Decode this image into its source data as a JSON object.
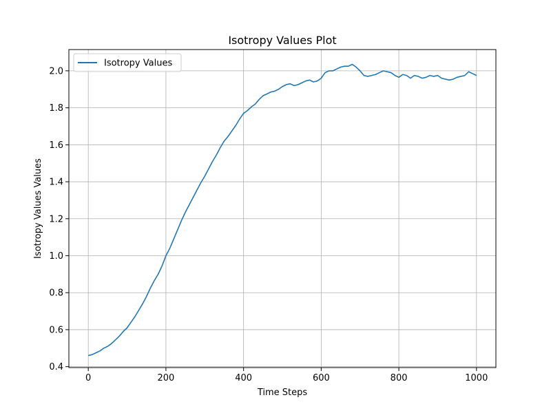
{
  "chart_data": {
    "type": "line",
    "title": "Isotropy Values Plot",
    "xlabel": "Time Steps",
    "ylabel": "Isotropy Values Values",
    "xlim": [
      -50,
      1050
    ],
    "ylim": [
      0.395,
      2.115
    ],
    "xticks": [
      0,
      200,
      400,
      600,
      800,
      1000
    ],
    "yticks": [
      0.4,
      0.6,
      0.8,
      1.0,
      1.2,
      1.4,
      1.6,
      1.8,
      2.0
    ],
    "xtick_labels": [
      "0",
      "200",
      "400",
      "600",
      "800",
      "1000"
    ],
    "ytick_labels": [
      "0.4",
      "0.6",
      "0.8",
      "1.0",
      "1.2",
      "1.4",
      "1.6",
      "1.8",
      "2.0"
    ],
    "grid": true,
    "legend": {
      "placement": "upper-left",
      "entries": [
        "Isotropy Values"
      ]
    },
    "series": [
      {
        "name": "Isotropy Values",
        "color": "#1f77b4",
        "x": [
          0,
          10,
          20,
          30,
          40,
          50,
          60,
          70,
          80,
          90,
          100,
          110,
          120,
          130,
          140,
          150,
          160,
          170,
          180,
          190,
          200,
          210,
          220,
          230,
          240,
          250,
          260,
          270,
          280,
          290,
          300,
          310,
          320,
          330,
          340,
          350,
          360,
          370,
          380,
          390,
          400,
          410,
          420,
          430,
          440,
          450,
          460,
          470,
          480,
          490,
          500,
          510,
          520,
          530,
          540,
          550,
          560,
          570,
          580,
          590,
          600,
          610,
          620,
          630,
          640,
          650,
          660,
          670,
          680,
          690,
          700,
          710,
          720,
          730,
          740,
          750,
          760,
          770,
          780,
          790,
          800,
          810,
          820,
          830,
          840,
          850,
          860,
          870,
          880,
          890,
          900,
          910,
          920,
          930,
          940,
          950,
          960,
          970,
          980,
          990,
          1000
        ],
        "y": [
          0.46,
          0.465,
          0.475,
          0.485,
          0.5,
          0.51,
          0.525,
          0.545,
          0.565,
          0.59,
          0.61,
          0.64,
          0.67,
          0.705,
          0.74,
          0.78,
          0.825,
          0.865,
          0.9,
          0.945,
          1.0,
          1.04,
          1.09,
          1.14,
          1.19,
          1.235,
          1.275,
          1.315,
          1.355,
          1.395,
          1.43,
          1.47,
          1.51,
          1.545,
          1.585,
          1.62,
          1.645,
          1.675,
          1.705,
          1.74,
          1.77,
          1.785,
          1.805,
          1.82,
          1.845,
          1.865,
          1.875,
          1.885,
          1.89,
          1.9,
          1.915,
          1.925,
          1.93,
          1.92,
          1.925,
          1.935,
          1.945,
          1.95,
          1.94,
          1.945,
          1.96,
          1.99,
          2.0,
          2.0,
          2.01,
          2.02,
          2.025,
          2.025,
          2.035,
          2.02,
          2.0,
          1.975,
          1.97,
          1.975,
          1.98,
          1.99,
          2.0,
          1.995,
          1.99,
          1.975,
          1.965,
          1.98,
          1.975,
          1.96,
          1.975,
          1.97,
          1.96,
          1.965,
          1.975,
          1.97,
          1.975,
          1.96,
          1.955,
          1.95,
          1.955,
          1.965,
          1.97,
          1.975,
          1.995,
          1.985,
          1.975
        ]
      }
    ]
  }
}
